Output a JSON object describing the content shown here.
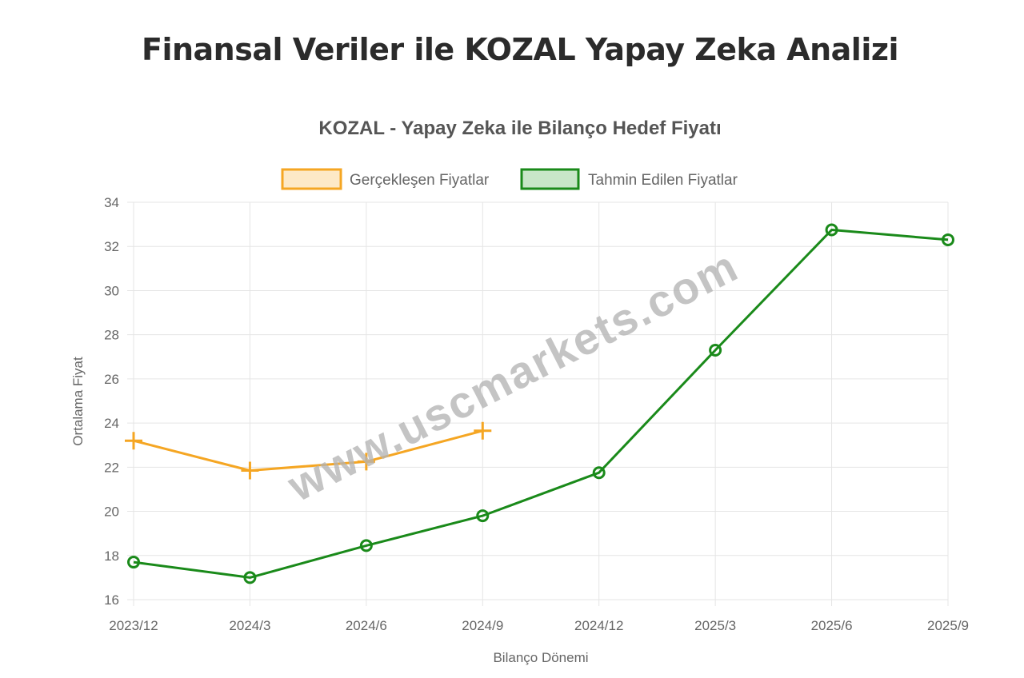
{
  "page": {
    "title": "Finansal Veriler ile KOZAL Yapay Zeka Analizi"
  },
  "watermark": "www.uscmarkets.com",
  "colors": {
    "actual": "#f5a623",
    "actual_fill": "#fde9c7",
    "predicted": "#1a8a1a",
    "predicted_fill": "#c8e6c8",
    "grid": "#e5e5e5",
    "text": "#666666"
  },
  "chart_data": {
    "type": "line",
    "title": "KOZAL - Yapay Zeka ile Bilanço Hedef Fiyatı",
    "xlabel": "Bilanço Dönemi",
    "ylabel": "Ortalama Fiyat",
    "categories": [
      "2023/12",
      "2024/3",
      "2024/6",
      "2024/9",
      "2024/12",
      "2025/3",
      "2025/6",
      "2025/9"
    ],
    "ylim": [
      16,
      34
    ],
    "yticks": [
      16,
      18,
      20,
      22,
      24,
      26,
      28,
      30,
      32,
      34
    ],
    "grid": true,
    "legend_position": "top-center",
    "series": [
      {
        "name": "Gerçekleşen Fiyatlar",
        "marker": "cross",
        "color": "#f5a623",
        "values": [
          23.2,
          21.85,
          22.25,
          23.65,
          null,
          null,
          null,
          null
        ]
      },
      {
        "name": "Tahmin Edilen Fiyatlar",
        "marker": "circle",
        "color": "#1a8a1a",
        "values": [
          17.7,
          17.0,
          18.45,
          19.8,
          21.75,
          27.3,
          32.75,
          32.3
        ]
      }
    ]
  }
}
